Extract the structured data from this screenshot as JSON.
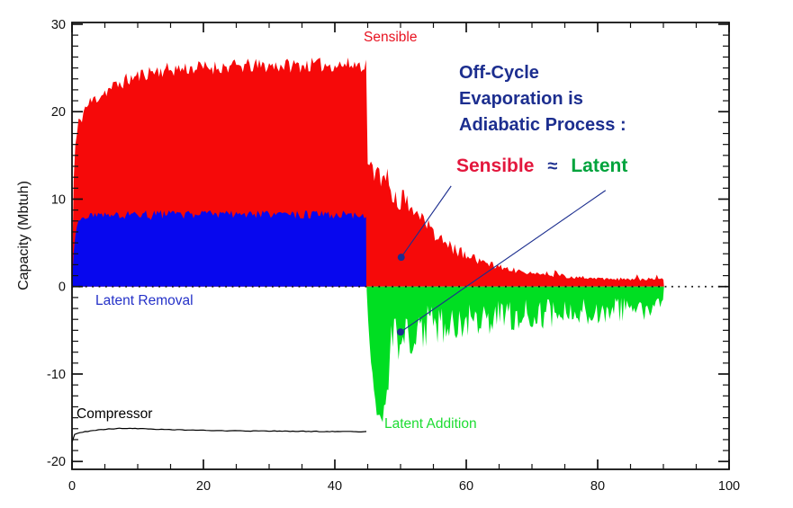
{
  "annotation": {
    "line1": "Off-Cycle",
    "line2": "Evaporation is",
    "line3": "Adiabatic Process :"
  },
  "equation": {
    "lhs": "Sensible",
    "approx": "≈",
    "rhs": "Latent"
  },
  "labels": {
    "sensible": "Sensible",
    "latent_removal": "Latent Removal",
    "compressor": "Compressor",
    "latent_addition": "Latent Addition"
  },
  "colors": {
    "area_red": "#f60909",
    "area_blue": "#0707ee",
    "area_green": "#00de22",
    "compressor_black": "#000000",
    "navy": "#1c2e8f",
    "equation_red": "#e3173d",
    "equation_green": "#00a33c",
    "label_red": "#e81220",
    "label_blue": "#2431c8",
    "label_green": "#1ddc32",
    "axis_black": "#111111"
  },
  "chart_data": {
    "type": "area",
    "title": "",
    "xlabel": "",
    "ylabel": "Capacity (Mbtuh)",
    "xlim": [
      0,
      100
    ],
    "ylim": [
      -20.9,
      30.2
    ],
    "x_ticks": [
      0,
      20,
      40,
      60,
      80,
      100
    ],
    "y_ticks": [
      30,
      20,
      10,
      0,
      -10,
      -20
    ],
    "x_minor_step": 5,
    "y_minor_step": 1.25,
    "grid": false,
    "zero_line": {
      "y": 0,
      "style": "dotted"
    },
    "series": [
      {
        "name": "Sensible",
        "color_key": "area_red",
        "kind": "area",
        "step": 0.25,
        "noise_mode": "abs_then_rel",
        "noise": {
          "amp": 0.85,
          "rel": 0.16,
          "abs2": 0.1,
          "spike_prob": 0.07,
          "spike": 0.5,
          "split": 44.8
        },
        "envelope": [
          [
            0,
            0
          ],
          [
            0.25,
            12
          ],
          [
            0.5,
            16
          ],
          [
            1,
            18.6
          ],
          [
            2,
            20.4
          ],
          [
            3,
            21.2
          ],
          [
            5,
            22.3
          ],
          [
            8,
            23.5
          ],
          [
            12,
            24.6
          ],
          [
            16,
            24.9
          ],
          [
            20,
            25.05
          ],
          [
            26,
            25.2
          ],
          [
            32,
            25.3
          ],
          [
            38,
            25.35
          ],
          [
            44.8,
            25.4
          ],
          [
            45.05,
            13.4
          ],
          [
            45.6,
            13.0
          ],
          [
            46.5,
            12.6
          ],
          [
            47.5,
            12.1
          ],
          [
            48.5,
            11.4
          ],
          [
            50,
            10.0
          ],
          [
            52,
            8.3
          ],
          [
            54,
            6.8
          ],
          [
            56,
            5.5
          ],
          [
            58,
            4.4
          ],
          [
            60,
            3.6
          ],
          [
            63,
            2.7
          ],
          [
            66,
            2.05
          ],
          [
            70,
            1.55
          ],
          [
            75,
            1.15
          ],
          [
            80,
            0.95
          ],
          [
            85,
            0.85
          ],
          [
            90.1,
            0.8
          ]
        ]
      },
      {
        "name": "Latent Removal",
        "color_key": "area_blue",
        "kind": "area",
        "step": 0.25,
        "noise_mode": "abs_dips",
        "noise": {
          "amp": 0.48,
          "dip_prob": 0.055,
          "dip": 1.1,
          "ramp_end": 2
        },
        "envelope": [
          [
            0,
            0
          ],
          [
            0.3,
            4.5
          ],
          [
            0.6,
            6.6
          ],
          [
            1,
            7.5
          ],
          [
            1.6,
            7.95
          ],
          [
            2.5,
            8.15
          ],
          [
            6,
            8.2
          ],
          [
            12,
            8.25
          ],
          [
            20,
            8.25
          ],
          [
            30,
            8.2
          ],
          [
            40,
            8.2
          ],
          [
            44.8,
            8.2
          ]
        ]
      },
      {
        "name": "Latent Addition",
        "color_key": "area_green",
        "kind": "area",
        "step": 0.22,
        "noise_mode": "factor",
        "noise": {
          "split": 48.3,
          "lo1": 0.88,
          "hi1": 1.0,
          "lo2": 0.28,
          "hi2": 1.0
        },
        "envelope": [
          [
            44.85,
            -0.5
          ],
          [
            45.2,
            -6
          ],
          [
            45.7,
            -11
          ],
          [
            46.2,
            -14.5
          ],
          [
            47.0,
            -16.8
          ],
          [
            47.5,
            -15
          ],
          [
            48.0,
            -12.5
          ],
          [
            48.6,
            -10.5
          ],
          [
            49.5,
            -9.3
          ],
          [
            50.5,
            -8.6
          ],
          [
            52,
            -7.8
          ],
          [
            54,
            -7.1
          ],
          [
            56,
            -6.6
          ],
          [
            58,
            -6.2
          ],
          [
            60,
            -5.9
          ],
          [
            63,
            -5.5
          ],
          [
            66,
            -5.2
          ],
          [
            69,
            -5.0
          ],
          [
            72,
            -4.8
          ],
          [
            75,
            -4.6
          ],
          [
            78,
            -4.4
          ],
          [
            81,
            -4.2
          ],
          [
            84,
            -4.0
          ],
          [
            87,
            -3.85
          ],
          [
            90.1,
            -3.7
          ]
        ]
      },
      {
        "name": "Compressor",
        "color_key": "compressor_black",
        "kind": "line",
        "step": 0.4,
        "noise_mode": "abs",
        "noise": {
          "amp": 0.035
        },
        "envelope": [
          [
            0,
            -17.8
          ],
          [
            0.12,
            -17.0
          ],
          [
            0.8,
            -16.8
          ],
          [
            2,
            -16.6
          ],
          [
            3.5,
            -16.45
          ],
          [
            5,
            -16.32
          ],
          [
            7,
            -16.22
          ],
          [
            9,
            -16.2
          ],
          [
            11,
            -16.27
          ],
          [
            14,
            -16.35
          ],
          [
            18,
            -16.42
          ],
          [
            24,
            -16.5
          ],
          [
            30,
            -16.52
          ],
          [
            36,
            -16.56
          ],
          [
            44.8,
            -16.6
          ],
          [
            45.0,
            -16.65
          ],
          [
            45.15,
            -20.85
          ]
        ]
      }
    ],
    "annotations": [
      {
        "name": "sensible-pointer",
        "from": [
          57.7,
          11.5
        ],
        "to": [
          50.1,
          3.35
        ],
        "dot": true
      },
      {
        "name": "latent-pointer",
        "from": [
          81.2,
          11.0
        ],
        "to": [
          50.0,
          -5.2
        ],
        "dot": true
      }
    ],
    "seed": 11
  }
}
